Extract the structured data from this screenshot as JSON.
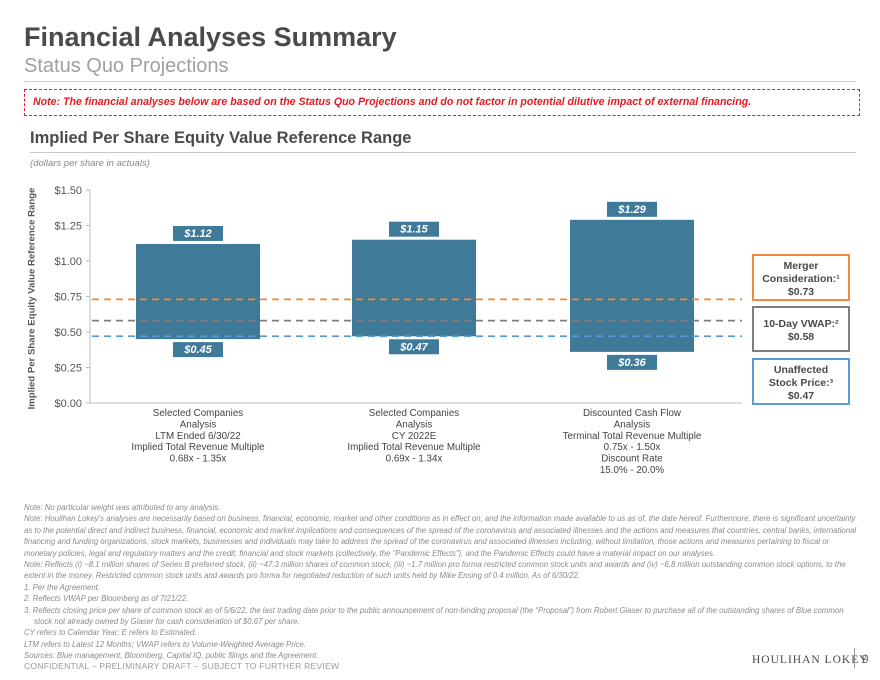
{
  "header": {
    "title": "Financial Analyses Summary",
    "subtitle": "Status Quo Projections"
  },
  "note_box": "Note: The financial analyses below are based on the Status Quo Projections and do not factor in potential dilutive impact of external financing.",
  "section_title": "Implied Per Share Equity Value Reference Range",
  "units_note": "(dollars per share in actuals)",
  "colors": {
    "bar": "#3f7a99",
    "merger": "#f0883e",
    "vwap": "#7f7f7f",
    "unaffected": "#5b9bd5",
    "note_red": "#e31b23"
  },
  "chart_data": {
    "type": "floating-bar",
    "ylabel": "Implied Per Share Equity Value Reference Range",
    "ylim": [
      0,
      1.5
    ],
    "yticks": [
      0,
      0.25,
      0.5,
      0.75,
      1.0,
      1.25,
      1.5
    ],
    "ytick_labels": [
      "$0.00",
      "$0.25",
      "$0.50",
      "$0.75",
      "$1.00",
      "$1.25",
      "$1.50"
    ],
    "bars": [
      {
        "low": 0.45,
        "high": 1.12,
        "low_label": "$0.45",
        "high_label": "$1.12",
        "category_lines": [
          "Selected Companies",
          "Analysis",
          "LTM Ended 6/30/22",
          "Implied Total Revenue Multiple",
          "0.68x - 1.35x"
        ]
      },
      {
        "low": 0.47,
        "high": 1.15,
        "low_label": "$0.47",
        "high_label": "$1.15",
        "category_lines": [
          "Selected Companies",
          "Analysis",
          "CY 2022E",
          "Implied Total Revenue Multiple",
          "0.69x - 1.34x"
        ]
      },
      {
        "low": 0.36,
        "high": 1.29,
        "low_label": "$0.36",
        "high_label": "$1.29",
        "category_lines": [
          "Discounted Cash Flow",
          "Analysis",
          "Terminal Total Revenue Multiple",
          "0.75x - 1.50x",
          "Discount Rate",
          "15.0% - 20.0%"
        ]
      }
    ],
    "reference_lines": [
      {
        "key": "merger",
        "value": 0.73,
        "label_lines": [
          "Merger",
          "Consideration:¹",
          "$0.73"
        ]
      },
      {
        "key": "vwap",
        "value": 0.58,
        "label_lines": [
          "10-Day VWAP:²",
          "$0.58"
        ]
      },
      {
        "key": "unaffected",
        "value": 0.47,
        "label_lines": [
          "Unaffected",
          "Stock Price:³",
          "$0.47"
        ]
      }
    ]
  },
  "footnotes": [
    "Note: No particular weight was attributed to any analysis.",
    "Note: Houlihan Lokey's analyses are necessarily based on business, financial, economic, market and other conditions as in effect on, and the information made available to us as of, the date hereof. Furthermore, there is significant uncertainty as to the potential direct and indirect business, financial, economic and market implications and consequences of the spread of the coronavirus and associated illnesses and the actions and measures that countries, central banks, international financing and funding organizations, stock markets, businesses and individuals may take to address the spread of the coronavirus and associated illnesses including, without limitation, those actions and measures pertaining to fiscal or monetary policies, legal and regulatory matters and the credit, financial and stock markets (collectively, the “Pandemic Effects”), and the Pandemic Effects could have a material impact on our analyses.",
    "Note: Reflects (i) ~8.1 million shares of Series B preferred stock, (ii) ~47.3 million shares of common stock, (iii) ~1.7 million pro forma restricted common stock units and awards and (iv) ~6.8 million outstanding common stock options, to the extent in the money. Restricted common stock units and awards pro forma for negotiated reduction of such units held by Mike Ensing of 0.4 million. As of 6/30/22.",
    "1.  Per the Agreement.",
    "2.  Reflects VWAP per Bloomberg as of 7/21/22.",
    "3.  Reflects closing price per share of common stock as of 5/6/22, the last trading date prior to the public announcement of non-binding proposal (the “Proposal”) from Robert Glaser to purchase all of the outstanding shares of Blue common stock not already owned by Glaser for cash consideration of $0.67 per share.",
    "CY refers to Calendar Year; E refers to Estimated.",
    "LTM refers to Latest 12 Months; VWAP refers to Volume-Weighted Average Price.",
    "Sources: Blue management, Bloomberg, Capital IQ, public filings and the Agreement."
  ],
  "footer": {
    "confidential": "CONFIDENTIAL – PRELIMINARY DRAFT – SUBJECT TO FURTHER REVIEW",
    "brand": "HOULIHAN LOKEY",
    "page_number": "9"
  }
}
